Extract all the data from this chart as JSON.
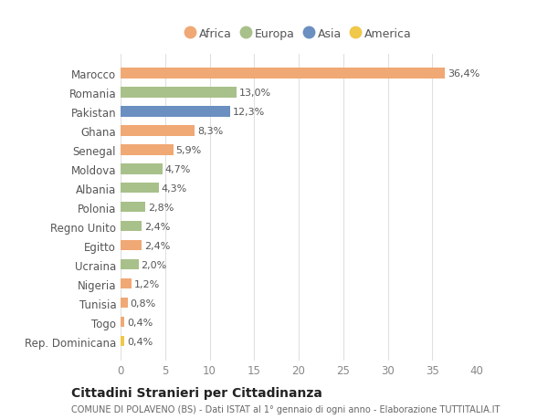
{
  "categories": [
    "Rep. Dominicana",
    "Togo",
    "Tunisia",
    "Nigeria",
    "Ucraina",
    "Egitto",
    "Regno Unito",
    "Polonia",
    "Albania",
    "Moldova",
    "Senegal",
    "Ghana",
    "Pakistan",
    "Romania",
    "Marocco"
  ],
  "values": [
    0.4,
    0.4,
    0.8,
    1.2,
    2.0,
    2.4,
    2.4,
    2.8,
    4.3,
    4.7,
    5.9,
    8.3,
    12.3,
    13.0,
    36.4
  ],
  "labels": [
    "0,4%",
    "0,4%",
    "0,8%",
    "1,2%",
    "2,0%",
    "2,4%",
    "2,4%",
    "2,8%",
    "4,3%",
    "4,7%",
    "5,9%",
    "8,3%",
    "12,3%",
    "13,0%",
    "36,4%"
  ],
  "continents": [
    "America",
    "Africa",
    "Africa",
    "Africa",
    "Europa",
    "Africa",
    "Europa",
    "Europa",
    "Europa",
    "Europa",
    "Africa",
    "Africa",
    "Asia",
    "Europa",
    "Africa"
  ],
  "colors": {
    "Africa": "#F0A875",
    "Europa": "#A8C08A",
    "Asia": "#6A8FC0",
    "America": "#F0C84A"
  },
  "legend_order": [
    "Africa",
    "Europa",
    "Asia",
    "America"
  ],
  "xlim": [
    0,
    40
  ],
  "xticks": [
    0,
    5,
    10,
    15,
    20,
    25,
    30,
    35,
    40
  ],
  "title": "Cittadini Stranieri per Cittadinanza",
  "subtitle": "COMUNE DI POLAVENO (BS) - Dati ISTAT al 1° gennaio di ogni anno - Elaborazione TUTTITALIA.IT",
  "bg_color": "#ffffff",
  "grid_color": "#e0e0e0",
  "bar_height": 0.55,
  "label_fontsize": 8.0,
  "ytick_fontsize": 8.5,
  "xtick_fontsize": 8.5
}
